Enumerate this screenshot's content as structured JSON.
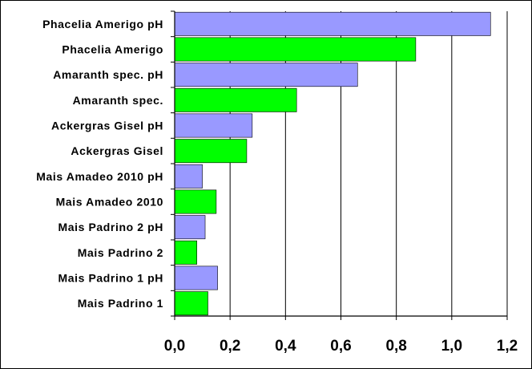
{
  "chart_data": {
    "type": "bar",
    "orientation": "horizontal",
    "categories": [
      "Phacelia Amerigo pH",
      "Phacelia Amerigo",
      "Amaranth spec. pH",
      "Amaranth spec.",
      "Ackergras Gisel pH",
      "Ackergras Gisel",
      "Mais Amadeo 2010 pH",
      "Mais Amadeo 2010",
      "Mais Padrino 2 pH",
      "Mais Padrino 2",
      "Mais Padrino 1 pH",
      "Mais Padrino 1"
    ],
    "values": [
      1.14,
      0.87,
      0.66,
      0.44,
      0.28,
      0.26,
      0.1,
      0.15,
      0.11,
      0.08,
      0.155,
      0.12
    ],
    "bar_colors": [
      "#9999ff",
      "#00ff00",
      "#9999ff",
      "#00ff00",
      "#9999ff",
      "#00ff00",
      "#9999ff",
      "#00ff00",
      "#9999ff",
      "#00ff00",
      "#9999ff",
      "#00ff00"
    ],
    "xlim": [
      0,
      1.2
    ],
    "ticks": [
      "0,0",
      "0,2",
      "0,4",
      "0,6",
      "0,8",
      "1,0",
      "1,2"
    ],
    "tick_values": [
      0,
      0.2,
      0.4,
      0.6,
      0.8,
      1.0,
      1.2
    ],
    "grid": "vertical-major",
    "legend": "none"
  }
}
